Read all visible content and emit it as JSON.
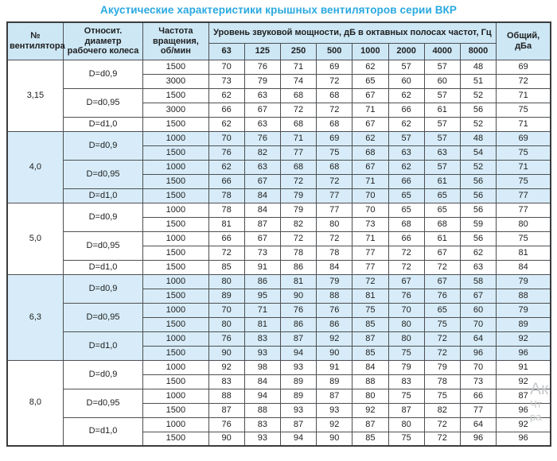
{
  "title": "Акустические характеристики крышных вентиляторов серии ВКР",
  "colors": {
    "title": "#29a9e0",
    "header_bg": "#cde7f5",
    "shaded_bg": "#d7ecf8",
    "border": "#4d4f52"
  },
  "watermark": {
    "fragments": [
      "Ак",
      "Чт",
      "ра"
    ]
  },
  "table": {
    "headers": {
      "fan_number": "№ вентилятора",
      "diameter": "Относит. диаметр рабочего колеса",
      "speed": "Частота вращения, об/мин",
      "power_level": "Уровень звуковой мощности, дБ в октавных полосах частот, Гц",
      "frequencies": [
        "63",
        "125",
        "250",
        "500",
        "1000",
        "2000",
        "4000",
        "8000"
      ],
      "total": "Общий, дБа"
    },
    "sections": [
      {
        "fan": "3,15",
        "shaded": false,
        "groups": [
          {
            "diameter": "D=d0,9",
            "rows": [
              {
                "rpm": "1500",
                "values": [
                  70,
                  76,
                  71,
                  69,
                  62,
                  57,
                  57,
                  48
                ],
                "total": 69
              },
              {
                "rpm": "3000",
                "values": [
                  73,
                  79,
                  74,
                  72,
                  65,
                  60,
                  60,
                  51
                ],
                "total": 72
              }
            ]
          },
          {
            "diameter": "D=d0,95",
            "rows": [
              {
                "rpm": "1500",
                "values": [
                  62,
                  63,
                  68,
                  68,
                  67,
                  62,
                  57,
                  52
                ],
                "total": 71
              },
              {
                "rpm": "3000",
                "values": [
                  66,
                  67,
                  72,
                  72,
                  71,
                  66,
                  61,
                  56
                ],
                "total": 75
              }
            ]
          },
          {
            "diameter": "D=d1,0",
            "rows": [
              {
                "rpm": "1500",
                "values": [
                  62,
                  63,
                  68,
                  68,
                  67,
                  62,
                  57,
                  52
                ],
                "total": 71
              }
            ]
          }
        ]
      },
      {
        "fan": "4,0",
        "shaded": true,
        "groups": [
          {
            "diameter": "D=d0,9",
            "rows": [
              {
                "rpm": "1000",
                "values": [
                  70,
                  76,
                  71,
                  69,
                  62,
                  57,
                  57,
                  48
                ],
                "total": 69
              },
              {
                "rpm": "1500",
                "values": [
                  76,
                  82,
                  77,
                  75,
                  68,
                  63,
                  63,
                  54
                ],
                "total": 75
              }
            ]
          },
          {
            "diameter": "D=d0,95",
            "rows": [
              {
                "rpm": "1000",
                "values": [
                  62,
                  63,
                  68,
                  68,
                  67,
                  62,
                  57,
                  52
                ],
                "total": 71
              },
              {
                "rpm": "1500",
                "values": [
                  66,
                  67,
                  72,
                  72,
                  71,
                  66,
                  61,
                  56
                ],
                "total": 75
              }
            ]
          },
          {
            "diameter": "D=d1,0",
            "rows": [
              {
                "rpm": "1500",
                "values": [
                  78,
                  84,
                  79,
                  77,
                  70,
                  65,
                  65,
                  56
                ],
                "total": 77
              }
            ]
          }
        ]
      },
      {
        "fan": "5,0",
        "shaded": false,
        "groups": [
          {
            "diameter": "D=d0,9",
            "rows": [
              {
                "rpm": "1000",
                "values": [
                  78,
                  84,
                  79,
                  77,
                  70,
                  65,
                  65,
                  56
                ],
                "total": 77
              },
              {
                "rpm": "1500",
                "values": [
                  81,
                  87,
                  82,
                  80,
                  73,
                  68,
                  68,
                  59
                ],
                "total": 80
              }
            ]
          },
          {
            "diameter": "D=d0,95",
            "rows": [
              {
                "rpm": "1000",
                "values": [
                  66,
                  67,
                  72,
                  72,
                  71,
                  66,
                  61,
                  56
                ],
                "total": 75
              },
              {
                "rpm": "1500",
                "values": [
                  72,
                  73,
                  78,
                  78,
                  77,
                  72,
                  67,
                  62
                ],
                "total": 81
              }
            ]
          },
          {
            "diameter": "D=d1,0",
            "rows": [
              {
                "rpm": "1500",
                "values": [
                  85,
                  91,
                  86,
                  84,
                  77,
                  72,
                  72,
                  63
                ],
                "total": 84
              }
            ]
          }
        ]
      },
      {
        "fan": "6,3",
        "shaded": true,
        "groups": [
          {
            "diameter": "D=d0,9",
            "rows": [
              {
                "rpm": "1000",
                "values": [
                  80,
                  86,
                  81,
                  79,
                  72,
                  67,
                  67,
                  58
                ],
                "total": 79
              },
              {
                "rpm": "1500",
                "values": [
                  89,
                  95,
                  90,
                  88,
                  81,
                  76,
                  76,
                  67
                ],
                "total": 88
              }
            ]
          },
          {
            "diameter": "D=d0,95",
            "rows": [
              {
                "rpm": "1000",
                "values": [
                  70,
                  71,
                  76,
                  76,
                  75,
                  70,
                  65,
                  60
                ],
                "total": 79
              },
              {
                "rpm": "1500",
                "values": [
                  80,
                  81,
                  86,
                  86,
                  85,
                  80,
                  75,
                  70
                ],
                "total": 89
              }
            ]
          },
          {
            "diameter": "D=d1,0",
            "rows": [
              {
                "rpm": "1000",
                "values": [
                  76,
                  83,
                  87,
                  92,
                  87,
                  80,
                  72,
                  64
                ],
                "total": 92
              },
              {
                "rpm": "1500",
                "values": [
                  90,
                  93,
                  94,
                  90,
                  85,
                  75,
                  72,
                  96
                ],
                "total": 96
              }
            ]
          }
        ]
      },
      {
        "fan": "8,0",
        "shaded": false,
        "groups": [
          {
            "diameter": "D=d0,9",
            "rows": [
              {
                "rpm": "1000",
                "values": [
                  92,
                  98,
                  93,
                  91,
                  84,
                  79,
                  79,
                  70
                ],
                "total": 91
              },
              {
                "rpm": "1500",
                "values": [
                  83,
                  84,
                  89,
                  89,
                  88,
                  83,
                  78,
                  73
                ],
                "total": 92
              }
            ]
          },
          {
            "diameter": "D=d0,95",
            "rows": [
              {
                "rpm": "1000",
                "values": [
                  88,
                  94,
                  89,
                  87,
                  80,
                  75,
                  75,
                  66
                ],
                "total": 87
              },
              {
                "rpm": "1500",
                "values": [
                  87,
                  88,
                  93,
                  93,
                  92,
                  87,
                  82,
                  77
                ],
                "total": 96
              }
            ]
          },
          {
            "diameter": "D=d1,0",
            "rows": [
              {
                "rpm": "1000",
                "values": [
                  76,
                  83,
                  87,
                  92,
                  87,
                  80,
                  72,
                  64
                ],
                "total": 92
              },
              {
                "rpm": "1500",
                "values": [
                  90,
                  93,
                  94,
                  90,
                  85,
                  75,
                  72,
                  96
                ],
                "total": 96
              }
            ]
          }
        ]
      }
    ]
  }
}
